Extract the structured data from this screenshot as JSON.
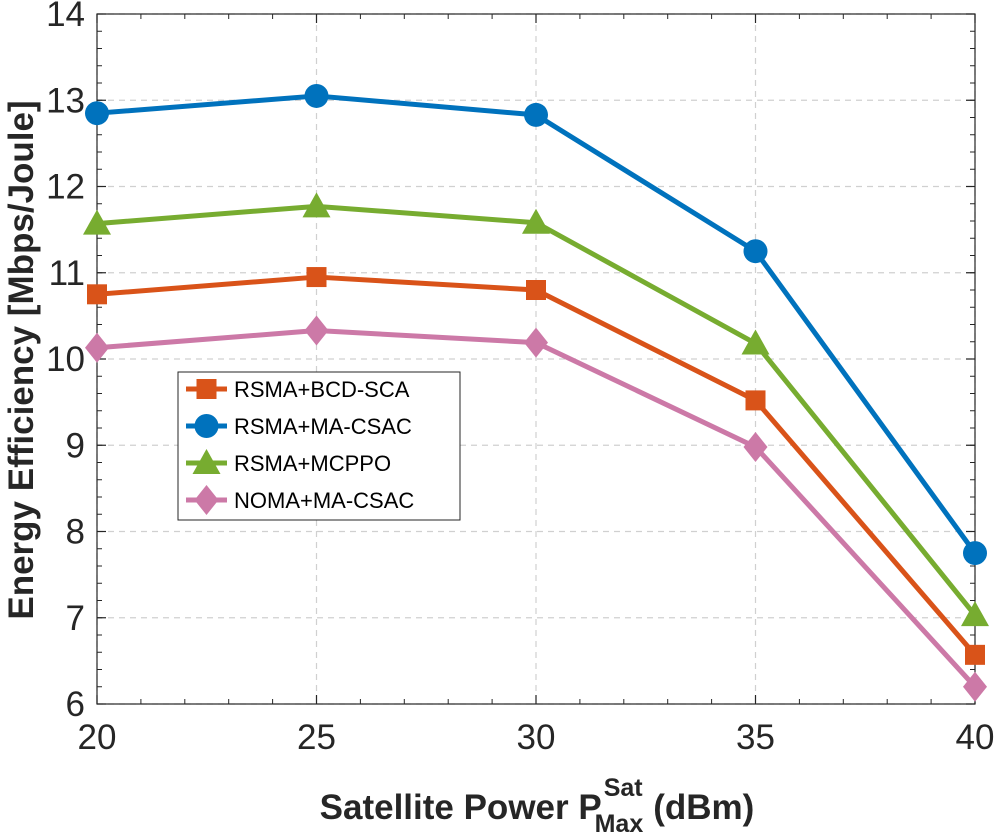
{
  "chart_data": {
    "type": "line",
    "x": [
      20,
      25,
      30,
      35,
      40
    ],
    "xlim": [
      20,
      40
    ],
    "ylim": [
      6,
      14
    ],
    "xticks": [
      "20",
      "25",
      "30",
      "35",
      "40"
    ],
    "yticks": [
      "6",
      "7",
      "8",
      "9",
      "10",
      "11",
      "12",
      "13",
      "14"
    ],
    "xlabel": {
      "main": "Satellite Power P",
      "superscript": "Sat",
      "subscript": "Max",
      "unit": "(dBm)"
    },
    "ylabel": "Energy Efficiency [Mbps/Joule]",
    "grid": true,
    "legend_position": "center-left",
    "series": [
      {
        "name": "RSMA+BCD-SCA",
        "marker": "square",
        "color": "#D95319",
        "values": [
          10.75,
          10.95,
          10.8,
          9.52,
          6.57
        ]
      },
      {
        "name": "RSMA+MA-CSAC",
        "marker": "circle",
        "color": "#0072BD",
        "values": [
          12.85,
          13.05,
          12.83,
          11.25,
          7.75
        ]
      },
      {
        "name": "RSMA+MCPPO",
        "marker": "triangle",
        "color": "#77AC30",
        "values": [
          11.57,
          11.77,
          11.58,
          10.18,
          7.03
        ]
      },
      {
        "name": "NOMA+MA-CSAC",
        "marker": "diamond",
        "color": "#CC79A7",
        "values": [
          10.13,
          10.33,
          10.19,
          8.98,
          6.2
        ]
      }
    ]
  }
}
